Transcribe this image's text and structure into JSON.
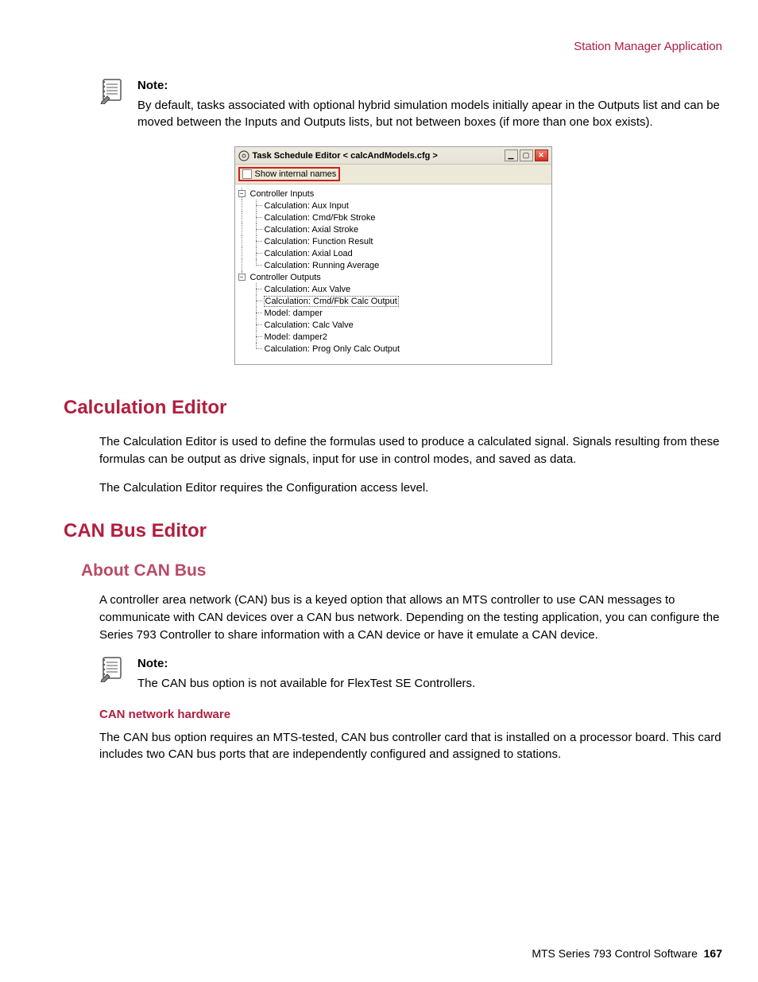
{
  "colors": {
    "brand": "#b11e3f",
    "brand_light": "#b94a68",
    "text": "#000000",
    "win_bg": "#ece9d8",
    "win_border": "#a0a0a0",
    "redbox": "#d02020",
    "treeline": "#808080"
  },
  "header": {
    "right": "Station Manager Application"
  },
  "note1": {
    "label": "Note:",
    "body": "By default, tasks associated with optional hybrid simulation models initially apear in the Outputs list and can be moved between the Inputs and Outputs lists, but not between boxes (if more than one box exists)."
  },
  "screenshot": {
    "title": "Task Schedule Editor < calcAndModels.cfg >",
    "checkbox_label": "Show internal names",
    "tree": {
      "inputs_label": "Controller Inputs",
      "inputs": [
        "Calculation: Aux Input",
        "Calculation: Cmd/Fbk Stroke",
        "Calculation: Axial Stroke",
        "Calculation: Function Result",
        "Calculation: Axial Load",
        "Calculation: Running Average"
      ],
      "outputs_label": "Controller Outputs",
      "outputs": [
        "Calculation: Aux Valve",
        "Calculation: Cmd/Fbk Calc Output",
        "Model: damper",
        "Calculation: Calc Valve",
        "Model: damper2",
        "Calculation: Prog Only Calc Output"
      ],
      "selected_output_index": 1
    }
  },
  "sec1": {
    "title": "Calculation Editor",
    "p1": "The Calculation Editor is used to define the formulas used to produce a calculated signal. Signals resulting from these formulas can be output as drive signals, input for use in control modes, and saved as data.",
    "p2": "The Calculation Editor requires the Configuration access level."
  },
  "sec2": {
    "title": "CAN Bus Editor",
    "sub1": {
      "title": "About CAN Bus",
      "p1": "A controller area network (CAN) bus is a keyed option that allows an MTS controller to use CAN messages to communicate with CAN devices over a CAN bus network. Depending on the testing application, you can configure the Series 793 Controller to share information with a CAN device or have it emulate a CAN device."
    },
    "note": {
      "label": "Note:",
      "body": "The CAN bus option is not available for FlexTest SE Controllers."
    },
    "hw": {
      "title": "CAN network hardware",
      "p1": "The CAN bus option requires an MTS-tested, CAN bus controller card that is installed on a processor board. This card includes two CAN bus ports that are independently configured and assigned to stations."
    }
  },
  "footer": {
    "product": "MTS Series 793 Control Software",
    "page": "167"
  }
}
